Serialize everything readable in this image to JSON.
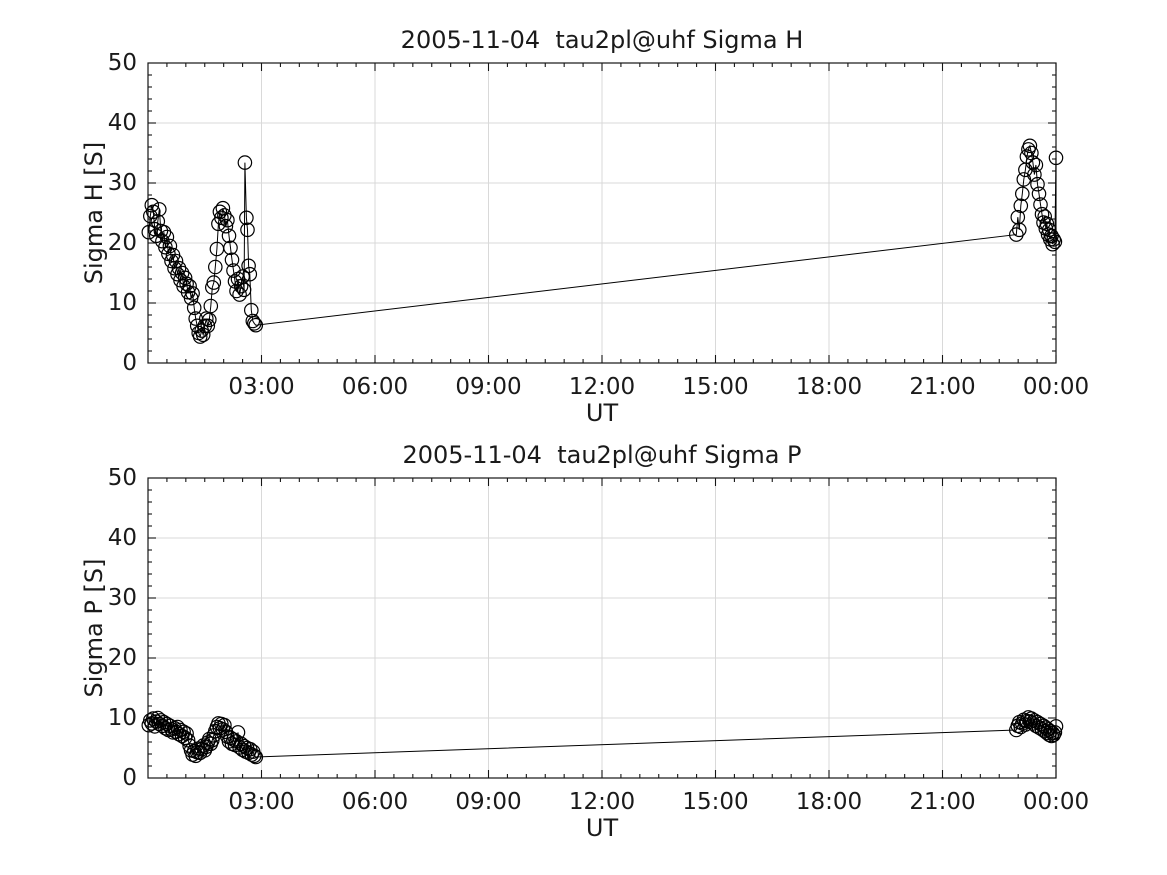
{
  "figure": {
    "background": "#ffffff",
    "text_color": "#1a1a1a",
    "axis_color": "#151515",
    "grid_color": "#d9d9d9",
    "data_color": "#000000"
  },
  "chart_data": [
    {
      "id": "sigma-h",
      "type": "line",
      "title": "2005-11-04  tau2pl@uhf Sigma H",
      "xlabel": "UT",
      "ylabel": "Sigma H [S]",
      "xlim_hours": [
        0,
        24
      ],
      "ylim": [
        0,
        50
      ],
      "xticks_hours": [
        3,
        6,
        9,
        12,
        15,
        18,
        21,
        24
      ],
      "xtick_labels": [
        "03:00",
        "06:00",
        "09:00",
        "12:00",
        "15:00",
        "18:00",
        "21:00",
        "00:00"
      ],
      "yticks": [
        0,
        10,
        20,
        30,
        40,
        50
      ],
      "x_minor_step_hours": 0.5,
      "y_minor_step": 2,
      "grid": "major",
      "legend": "none",
      "marker": "open-circle",
      "series": [
        {
          "name": "Sigma H",
          "points": [
            [
              0.02,
              21.8
            ],
            [
              0.06,
              24.5
            ],
            [
              0.1,
              26.3
            ],
            [
              0.14,
              25.2
            ],
            [
              0.18,
              22.3
            ],
            [
              0.22,
              21.2
            ],
            [
              0.26,
              23.6
            ],
            [
              0.3,
              25.6
            ],
            [
              0.34,
              22.0
            ],
            [
              0.38,
              20.3
            ],
            [
              0.42,
              21.8
            ],
            [
              0.46,
              19.3
            ],
            [
              0.5,
              21.0
            ],
            [
              0.54,
              18.2
            ],
            [
              0.58,
              19.5
            ],
            [
              0.62,
              17.0
            ],
            [
              0.66,
              18.0
            ],
            [
              0.7,
              15.8
            ],
            [
              0.74,
              17.0
            ],
            [
              0.78,
              14.8
            ],
            [
              0.82,
              15.8
            ],
            [
              0.86,
              13.8
            ],
            [
              0.9,
              15.0
            ],
            [
              0.94,
              12.8
            ],
            [
              0.98,
              14.2
            ],
            [
              1.02,
              13.2
            ],
            [
              1.06,
              11.8
            ],
            [
              1.1,
              12.8
            ],
            [
              1.14,
              10.8
            ],
            [
              1.18,
              11.6
            ],
            [
              1.22,
              9.2
            ],
            [
              1.26,
              7.4
            ],
            [
              1.3,
              6.2
            ],
            [
              1.34,
              5.0
            ],
            [
              1.38,
              4.4
            ],
            [
              1.42,
              5.4
            ],
            [
              1.46,
              4.7
            ],
            [
              1.5,
              6.2
            ],
            [
              1.54,
              7.4
            ],
            [
              1.58,
              6.2
            ],
            [
              1.62,
              7.2
            ],
            [
              1.66,
              9.5
            ],
            [
              1.7,
              12.6
            ],
            [
              1.74,
              13.4
            ],
            [
              1.78,
              16.0
            ],
            [
              1.82,
              19.0
            ],
            [
              1.86,
              23.2
            ],
            [
              1.9,
              25.2
            ],
            [
              1.94,
              24.2
            ],
            [
              1.98,
              25.8
            ],
            [
              2.02,
              24.6
            ],
            [
              2.06,
              22.8
            ],
            [
              2.1,
              23.8
            ],
            [
              2.14,
              21.2
            ],
            [
              2.18,
              19.2
            ],
            [
              2.22,
              17.2
            ],
            [
              2.26,
              15.4
            ],
            [
              2.3,
              13.6
            ],
            [
              2.34,
              12.0
            ],
            [
              2.38,
              14.0
            ],
            [
              2.42,
              11.4
            ],
            [
              2.46,
              12.8
            ],
            [
              2.5,
              14.4
            ],
            [
              2.54,
              12.2
            ],
            [
              2.56,
              33.4
            ],
            [
              2.6,
              24.2
            ],
            [
              2.63,
              22.2
            ],
            [
              2.66,
              16.2
            ],
            [
              2.69,
              14.8
            ],
            [
              2.73,
              8.8
            ],
            [
              2.77,
              7.0
            ],
            [
              2.81,
              6.6
            ],
            [
              2.85,
              6.3
            ],
            [
              22.95,
              21.4
            ],
            [
              22.99,
              24.3
            ],
            [
              23.03,
              22.2
            ],
            [
              23.07,
              26.2
            ],
            [
              23.11,
              28.2
            ],
            [
              23.15,
              30.6
            ],
            [
              23.19,
              32.2
            ],
            [
              23.23,
              34.4
            ],
            [
              23.27,
              35.6
            ],
            [
              23.31,
              36.2
            ],
            [
              23.35,
              35.0
            ],
            [
              23.39,
              33.4
            ],
            [
              23.43,
              31.4
            ],
            [
              23.47,
              33.0
            ],
            [
              23.51,
              29.8
            ],
            [
              23.55,
              28.2
            ],
            [
              23.59,
              26.4
            ],
            [
              23.63,
              24.8
            ],
            [
              23.67,
              23.4
            ],
            [
              23.7,
              24.4
            ],
            [
              23.73,
              22.4
            ],
            [
              23.76,
              23.2
            ],
            [
              23.79,
              21.4
            ],
            [
              23.82,
              22.2
            ],
            [
              23.85,
              20.6
            ],
            [
              23.88,
              21.2
            ],
            [
              23.91,
              19.8
            ],
            [
              23.94,
              20.6
            ],
            [
              23.97,
              20.2
            ],
            [
              24.0,
              34.2
            ]
          ]
        }
      ]
    },
    {
      "id": "sigma-p",
      "type": "line",
      "title": "2005-11-04  tau2pl@uhf Sigma P",
      "xlabel": "UT",
      "ylabel": "Sigma P [S]",
      "xlim_hours": [
        0,
        24
      ],
      "ylim": [
        0,
        50
      ],
      "xticks_hours": [
        3,
        6,
        9,
        12,
        15,
        18,
        21,
        24
      ],
      "xtick_labels": [
        "03:00",
        "06:00",
        "09:00",
        "12:00",
        "15:00",
        "18:00",
        "21:00",
        "00:00"
      ],
      "yticks": [
        0,
        10,
        20,
        30,
        40,
        50
      ],
      "x_minor_step_hours": 0.5,
      "y_minor_step": 2,
      "grid": "major",
      "legend": "none",
      "marker": "open-circle",
      "series": [
        {
          "name": "Sigma P",
          "points": [
            [
              0.02,
              8.8
            ],
            [
              0.06,
              9.6
            ],
            [
              0.1,
              9.1
            ],
            [
              0.14,
              9.9
            ],
            [
              0.18,
              8.6
            ],
            [
              0.22,
              9.4
            ],
            [
              0.26,
              10.0
            ],
            [
              0.3,
              9.0
            ],
            [
              0.34,
              9.6
            ],
            [
              0.38,
              8.7
            ],
            [
              0.42,
              9.3
            ],
            [
              0.46,
              8.3
            ],
            [
              0.5,
              9.0
            ],
            [
              0.54,
              8.0
            ],
            [
              0.58,
              8.7
            ],
            [
              0.62,
              8.1
            ],
            [
              0.66,
              7.6
            ],
            [
              0.7,
              8.3
            ],
            [
              0.74,
              7.7
            ],
            [
              0.78,
              8.5
            ],
            [
              0.82,
              7.3
            ],
            [
              0.86,
              8.0
            ],
            [
              0.9,
              7.0
            ],
            [
              0.94,
              7.7
            ],
            [
              0.98,
              6.7
            ],
            [
              1.02,
              7.4
            ],
            [
              1.06,
              6.3
            ],
            [
              1.1,
              5.4
            ],
            [
              1.14,
              4.6
            ],
            [
              1.18,
              3.9
            ],
            [
              1.22,
              4.5
            ],
            [
              1.26,
              3.7
            ],
            [
              1.3,
              4.3
            ],
            [
              1.34,
              4.9
            ],
            [
              1.38,
              4.2
            ],
            [
              1.42,
              4.8
            ],
            [
              1.46,
              5.4
            ],
            [
              1.5,
              4.6
            ],
            [
              1.54,
              5.2
            ],
            [
              1.58,
              5.9
            ],
            [
              1.62,
              6.5
            ],
            [
              1.66,
              5.7
            ],
            [
              1.7,
              6.3
            ],
            [
              1.74,
              7.1
            ],
            [
              1.78,
              7.8
            ],
            [
              1.82,
              8.5
            ],
            [
              1.86,
              9.1
            ],
            [
              1.9,
              8.3
            ],
            [
              1.94,
              9.0
            ],
            [
              1.98,
              8.1
            ],
            [
              2.02,
              8.8
            ],
            [
              2.06,
              7.7
            ],
            [
              2.1,
              6.9
            ],
            [
              2.14,
              6.1
            ],
            [
              2.18,
              6.7
            ],
            [
              2.22,
              5.7
            ],
            [
              2.26,
              6.4
            ],
            [
              2.3,
              5.5
            ],
            [
              2.34,
              6.1
            ],
            [
              2.38,
              7.6
            ],
            [
              2.42,
              5.1
            ],
            [
              2.46,
              5.7
            ],
            [
              2.5,
              4.7
            ],
            [
              2.54,
              5.3
            ],
            [
              2.58,
              4.4
            ],
            [
              2.62,
              5.0
            ],
            [
              2.66,
              4.2
            ],
            [
              2.7,
              4.8
            ],
            [
              2.74,
              3.9
            ],
            [
              2.78,
              4.4
            ],
            [
              2.81,
              3.7
            ],
            [
              2.85,
              3.5
            ],
            [
              22.95,
              8.0
            ],
            [
              22.99,
              8.7
            ],
            [
              23.03,
              9.3
            ],
            [
              23.07,
              8.5
            ],
            [
              23.11,
              9.1
            ],
            [
              23.15,
              9.7
            ],
            [
              23.19,
              8.9
            ],
            [
              23.23,
              9.5
            ],
            [
              23.27,
              10.1
            ],
            [
              23.31,
              9.4
            ],
            [
              23.35,
              9.9
            ],
            [
              23.39,
              9.1
            ],
            [
              23.43,
              9.6
            ],
            [
              23.47,
              8.7
            ],
            [
              23.51,
              9.3
            ],
            [
              23.55,
              8.4
            ],
            [
              23.59,
              9.0
            ],
            [
              23.63,
              8.1
            ],
            [
              23.67,
              8.7
            ],
            [
              23.7,
              7.8
            ],
            [
              23.73,
              8.4
            ],
            [
              23.76,
              7.5
            ],
            [
              23.79,
              8.1
            ],
            [
              23.82,
              7.2
            ],
            [
              23.85,
              7.8
            ],
            [
              23.88,
              7.0
            ],
            [
              23.91,
              7.5
            ],
            [
              23.94,
              7.2
            ],
            [
              23.97,
              7.6
            ],
            [
              24.0,
              8.6
            ]
          ]
        }
      ]
    }
  ]
}
